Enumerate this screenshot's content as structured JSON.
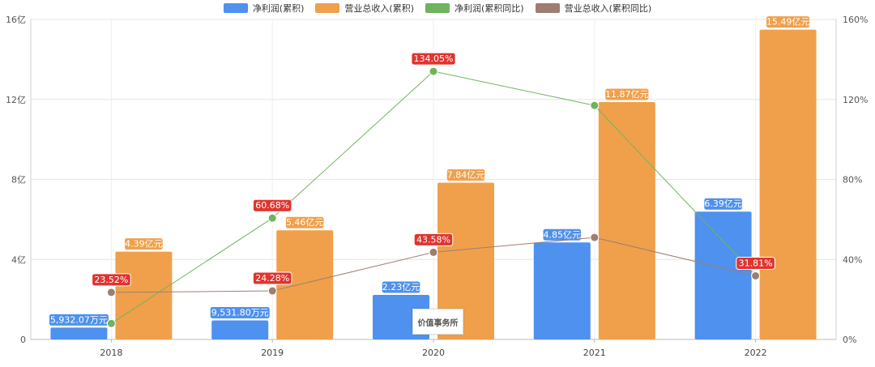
{
  "chart_data": {
    "type": "bar",
    "categories": [
      "2018",
      "2019",
      "2020",
      "2021",
      "2022"
    ],
    "y_left": {
      "ticks": [
        "0",
        "4亿",
        "8亿",
        "12亿",
        "16亿"
      ],
      "range": [
        0,
        16
      ]
    },
    "y_right": {
      "ticks": [
        "0%",
        "40%",
        "80%",
        "120%",
        "160%"
      ],
      "range": [
        0,
        160
      ]
    },
    "series": [
      {
        "name": "净利润(累积)",
        "kind": "bar",
        "color": "#4e91ee",
        "values": [
          0.5932,
          0.9532,
          2.23,
          4.85,
          6.39
        ],
        "labels": [
          "5,932.07万元",
          "9,531.80万元",
          "2.23亿元",
          "4.85亿元",
          "6.39亿元"
        ]
      },
      {
        "name": "营业总收入(累积)",
        "kind": "bar",
        "color": "#f0a04b",
        "values": [
          4.39,
          5.46,
          7.84,
          11.87,
          15.49
        ],
        "labels": [
          "4.39亿元",
          "5.46亿元",
          "7.84亿元",
          "11.87亿元",
          "15.49亿元"
        ]
      },
      {
        "name": "净利润(累积同比)",
        "kind": "line",
        "color": "#6fb35f",
        "values": [
          8,
          60.68,
          134.05,
          117,
          32
        ],
        "labels": [
          "",
          "60.68%",
          "134.05%",
          "",
          ""
        ]
      },
      {
        "name": "营业总收入(累积同比)",
        "kind": "line",
        "color": "#9e7e72",
        "values": [
          23.52,
          24.28,
          43.58,
          51,
          31.81
        ],
        "labels": [
          "23.52%",
          "24.28%",
          "43.58%",
          "",
          "31.81%"
        ]
      }
    ],
    "grid": true,
    "legend_position": "top-center"
  },
  "watermark": {
    "text": "价值事务所"
  }
}
